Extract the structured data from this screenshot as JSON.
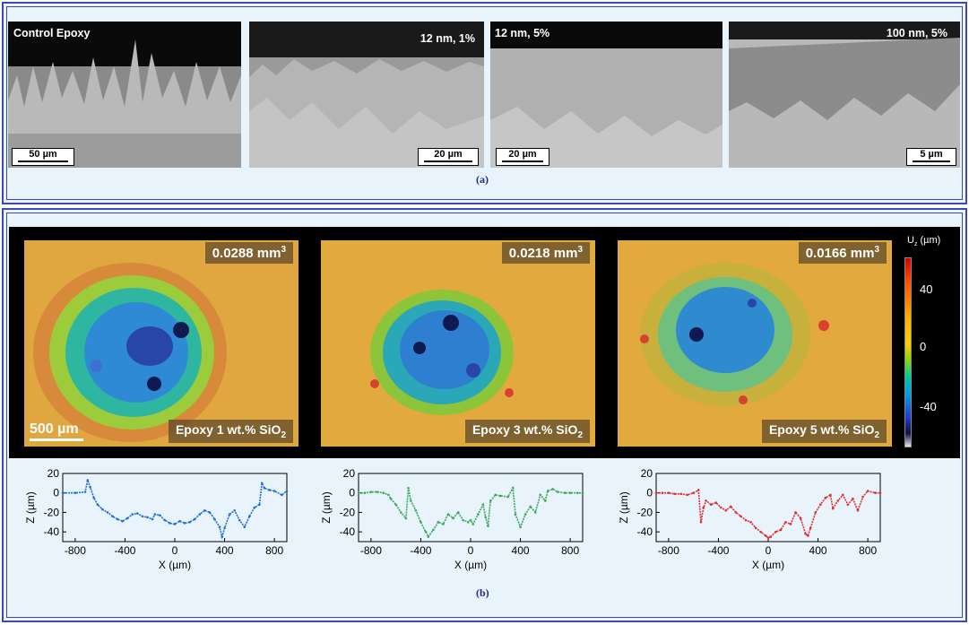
{
  "panel_a": {
    "caption": "(a)",
    "images": [
      {
        "label": "Control Epoxy",
        "scale": "50 µm"
      },
      {
        "label": "12 nm, 1%",
        "scale": "20 µm"
      },
      {
        "label": "12 nm, 5%",
        "scale": "20 µm"
      },
      {
        "label": "100 nm, 5%",
        "scale": "5 µm"
      }
    ]
  },
  "panel_b": {
    "caption": "(b)",
    "maps": [
      {
        "volume": "0.0288 mm",
        "volume_exp": "3",
        "material": "Epoxy 1 wt.% SiO",
        "material_sub": "2"
      },
      {
        "volume": "0.0218 mm",
        "volume_exp": "3",
        "material": "Epoxy 3 wt.% SiO",
        "material_sub": "2"
      },
      {
        "volume": "0.0166 mm",
        "volume_exp": "3",
        "material": "Epoxy 5 wt.% SiO",
        "material_sub": "2"
      }
    ],
    "map_scale": "500 µm",
    "colorbar": {
      "title": "U",
      "title_sub": "z",
      "title_unit": " (µm)",
      "ticks": [
        "40",
        "0",
        "-40"
      ]
    }
  },
  "colors": {
    "profile_1": "#1f6fd6",
    "profile_2": "#3aaa5a",
    "profile_3": "#e03030",
    "frame": "#3b49b5",
    "panel_bg": "#e9f3fb"
  },
  "chart_data": [
    {
      "type": "scatter",
      "title": "",
      "xlabel": "X (µm)",
      "ylabel": "Z (µm)",
      "xlim": [
        -900,
        900
      ],
      "ylim": [
        -50,
        20
      ],
      "xticks": [
        "-800",
        "-400",
        "0",
        "400",
        "800"
      ],
      "yticks": [
        "20",
        "0",
        "-20",
        "-40"
      ],
      "series": [
        {
          "x": [
            -900,
            -800,
            -720,
            -700,
            -680,
            -650,
            -620,
            -580,
            -540,
            -500,
            -460,
            -420,
            -380,
            -340,
            -300,
            -260,
            -220,
            -180,
            -160,
            -120,
            -80,
            -40,
            0,
            40,
            80,
            120,
            160,
            200,
            240,
            280,
            320,
            360,
            380,
            400,
            440,
            480,
            520,
            560,
            600,
            640,
            680,
            700,
            720,
            760,
            800,
            860,
            900
          ],
          "y": [
            0,
            0,
            1,
            13,
            6,
            -5,
            -12,
            -17,
            -20,
            -24,
            -27,
            -29,
            -26,
            -22,
            -21,
            -24,
            -25,
            -27,
            -22,
            -23,
            -28,
            -31,
            -32,
            -29,
            -31,
            -30,
            -27,
            -22,
            -18,
            -20,
            -27,
            -35,
            -45,
            -36,
            -22,
            -18,
            -28,
            -35,
            -24,
            -15,
            -12,
            10,
            5,
            3,
            2,
            -2,
            2
          ]
        }
      ]
    },
    {
      "type": "scatter",
      "title": "",
      "xlabel": "X (µm)",
      "ylabel": "Z (µm)",
      "xlim": [
        -900,
        900
      ],
      "ylim": [
        -50,
        20
      ],
      "xticks": [
        "-800",
        "-400",
        "0",
        "400",
        "800"
      ],
      "yticks": [
        "20",
        "0",
        "-20",
        "-40"
      ],
      "series": [
        {
          "x": [
            -900,
            -850,
            -800,
            -750,
            -700,
            -660,
            -640,
            -600,
            -560,
            -520,
            -500,
            -480,
            -440,
            -400,
            -360,
            -340,
            -300,
            -260,
            -220,
            -180,
            -140,
            -100,
            -60,
            -20,
            0,
            20,
            60,
            100,
            120,
            140,
            160,
            200,
            240,
            300,
            340,
            360,
            400,
            440,
            480,
            520,
            560,
            600,
            620,
            660,
            700,
            760,
            800,
            860,
            900
          ],
          "y": [
            0,
            0,
            1,
            1,
            0,
            -2,
            -6,
            -12,
            -20,
            -26,
            5,
            -8,
            -18,
            -30,
            -40,
            -45,
            -38,
            -30,
            -32,
            -22,
            -26,
            -20,
            -28,
            -30,
            -28,
            -32,
            -22,
            -12,
            -25,
            -34,
            -8,
            -2,
            -3,
            -4,
            5,
            -22,
            -35,
            -22,
            -14,
            -20,
            -2,
            -8,
            2,
            4,
            1,
            0,
            0,
            0,
            0
          ]
        }
      ]
    },
    {
      "type": "scatter",
      "title": "",
      "xlabel": "X (µm)",
      "ylabel": "Z (µm)",
      "xlim": [
        -900,
        900
      ],
      "ylim": [
        -50,
        20
      ],
      "xticks": [
        "-800",
        "-400",
        "0",
        "400",
        "800"
      ],
      "yticks": [
        "20",
        "0",
        "-20",
        "-40"
      ],
      "series": [
        {
          "x": [
            -900,
            -850,
            -800,
            -750,
            -700,
            -650,
            -600,
            -560,
            -540,
            -520,
            -500,
            -460,
            -420,
            -380,
            -340,
            -300,
            -260,
            -220,
            -180,
            -140,
            -100,
            -60,
            -20,
            0,
            20,
            60,
            100,
            140,
            180,
            220,
            260,
            300,
            320,
            340,
            380,
            420,
            460,
            500,
            520,
            560,
            600,
            640,
            680,
            720,
            760,
            800,
            860,
            900
          ],
          "y": [
            0,
            0,
            0,
            -1,
            -1,
            -2,
            0,
            3,
            -30,
            -15,
            -8,
            -12,
            -10,
            -15,
            -18,
            -14,
            -20,
            -24,
            -28,
            -30,
            -36,
            -40,
            -44,
            -46,
            -45,
            -40,
            -38,
            -30,
            -32,
            -20,
            -26,
            -42,
            -44,
            -36,
            -20,
            -12,
            -5,
            -2,
            -16,
            -8,
            -2,
            -12,
            -6,
            -18,
            -4,
            2,
            0,
            0
          ]
        }
      ]
    }
  ]
}
